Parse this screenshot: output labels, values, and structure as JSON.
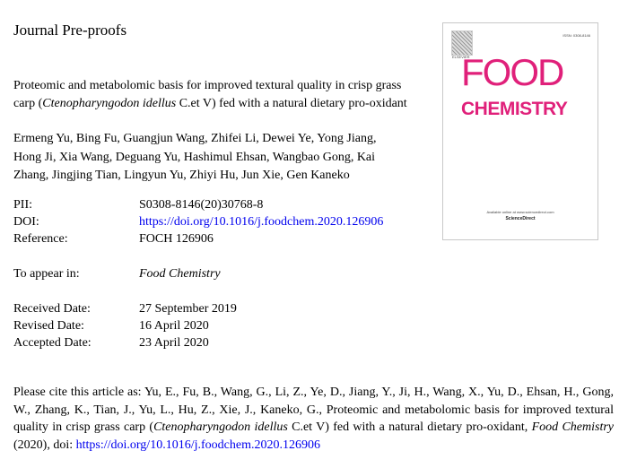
{
  "header": {
    "title": "Journal Pre-proofs"
  },
  "article": {
    "title_line1": "Proteomic and metabolomic basis for improved textural quality in crisp grass",
    "title_line2_pre": "carp (",
    "title_line2_italic": "Ctenopharyngodon idellus",
    "title_line2_post": " C.et V) fed with a natural dietary pro-oxidant",
    "authors": [
      "Ermeng Yu, Bing Fu, Guangjun Wang, Zhifei Li, Dewei Ye, Yong Jiang,",
      "Hong Ji, Xia Wang, Deguang Yu, Hashimul Ehsan, Wangbao Gong, Kai",
      "Zhang, Jingjing Tian, Lingyun Yu, Zhiyi Hu, Jun Xie, Gen Kaneko"
    ]
  },
  "meta": {
    "pii_label": "PII:",
    "pii": "S0308-8146(20)30768-8",
    "doi_label": "DOI:",
    "doi": "https://doi.org/10.1016/j.foodchem.2020.126906",
    "ref_label": "Reference:",
    "ref": "FOCH 126906",
    "appear_label": "To appear in:",
    "appear": "Food Chemistry",
    "received_label": "Received Date:",
    "received": "27 September 2019",
    "revised_label": "Revised Date:",
    "revised": "16 April 2020",
    "accepted_label": "Accepted Date:",
    "accepted": "23 April 2020"
  },
  "cover": {
    "food": "FOOD",
    "chemistry": "CHEMISTRY",
    "issn": "ISSN: 0308-8146",
    "publisher": "ELSEVIER",
    "available": "Available online at www.sciencedirect.com",
    "sciencedirect": "ScienceDirect",
    "brand_color": "#e0207a"
  },
  "citation": {
    "p1": "Please cite this article as: Yu, E., Fu, B., Wang, G., Li, Z., Ye, D., Jiang, Y., Ji, H., Wang, X., Yu, D., Ehsan, H., Gong, W., Zhang, K., Tian, J., Yu, L., Hu, Z., Xie, J., Kaneko, G., Proteomic and metabolomic basis for improved textural quality in crisp grass carp (",
    "i1": "Ctenopharyngodon idellus",
    "p2": " C.et V) fed with a natural dietary pro-oxidant, ",
    "i2": "Food Chemistry",
    "p3": " (2020), doi: ",
    "link": "https://doi.org/10.1016/j.foodchem.2020.126906"
  }
}
